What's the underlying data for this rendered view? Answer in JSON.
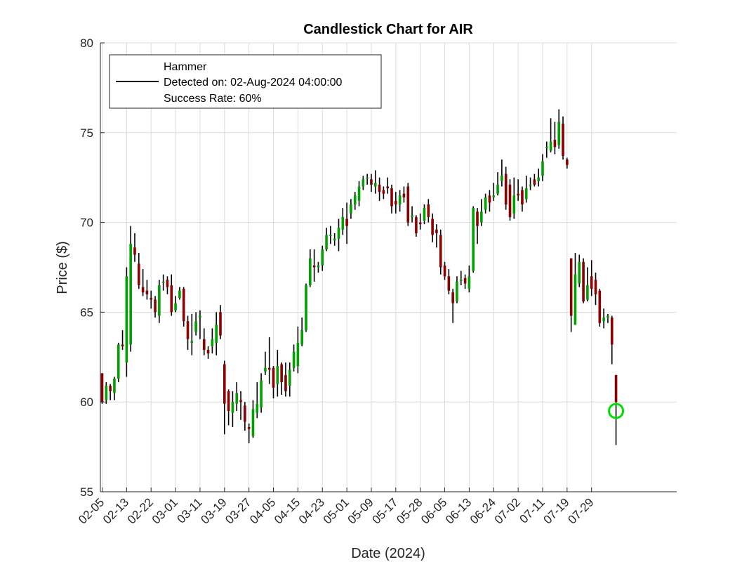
{
  "chart_data": {
    "type": "candlestick",
    "title": "Candlestick Chart for AIR",
    "xlabel": "Date (2024)",
    "ylabel": "Price ($)",
    "ylim": [
      55,
      80
    ],
    "yticks": [
      55,
      60,
      65,
      70,
      75,
      80
    ],
    "xtick_labels": [
      "02-05",
      "02-13",
      "02-22",
      "03-01",
      "03-11",
      "03-19",
      "03-27",
      "04-05",
      "04-15",
      "04-23",
      "05-01",
      "05-09",
      "05-17",
      "05-28",
      "06-05",
      "06-13",
      "06-24",
      "07-02",
      "07-11",
      "07-19",
      "07-29"
    ],
    "grid": true,
    "legend": {
      "location": "top-left",
      "lines": [
        "Hammer",
        "Detected on: 02-Aug-2024 04:00:00",
        "Success Rate: 60%"
      ]
    },
    "colors": {
      "up": "#00a000",
      "down": "#8b0000",
      "wick": "#000000",
      "marker": "#00e000"
    },
    "marker": {
      "index": 126,
      "price": 59.5
    },
    "candles": [
      [
        61.6,
        60.0,
        61.6,
        59.9
      ],
      [
        60.1,
        60.9,
        61.1,
        59.9
      ],
      [
        60.9,
        60.6,
        61.0,
        60.1
      ],
      [
        60.5,
        61.3,
        61.4,
        60.1
      ],
      [
        61.3,
        63.2,
        63.3,
        61.1
      ],
      [
        63.2,
        63.1,
        64.0,
        62.9
      ],
      [
        62.2,
        67.0,
        67.5,
        61.4
      ],
      [
        63.2,
        68.8,
        69.8,
        62.8
      ],
      [
        68.6,
        68.2,
        69.4,
        67.8
      ],
      [
        67.7,
        66.5,
        68.3,
        66.3
      ],
      [
        66.4,
        66.1,
        67.4,
        65.9
      ],
      [
        66.2,
        66.0,
        66.8,
        65.7
      ],
      [
        65.8,
        65.7,
        66.2,
        65.2
      ],
      [
        65.7,
        65.0,
        65.9,
        64.7
      ],
      [
        64.8,
        66.5,
        66.8,
        64.4
      ],
      [
        66.7,
        66.7,
        67.1,
        66.2
      ],
      [
        66.8,
        66.4,
        67.0,
        66.0
      ],
      [
        66.5,
        65.0,
        67.1,
        64.8
      ],
      [
        65.1,
        65.5,
        65.9,
        65.0
      ],
      [
        65.8,
        66.2,
        66.4,
        65.7
      ],
      [
        66.3,
        64.5,
        66.4,
        64.2
      ],
      [
        64.5,
        63.5,
        64.8,
        62.9
      ],
      [
        63.3,
        63.4,
        64.9,
        62.6
      ],
      [
        63.9,
        64.5,
        65.0,
        63.7
      ],
      [
        64.7,
        64.8,
        65.1,
        63.5
      ],
      [
        63.5,
        62.9,
        64.1,
        62.6
      ],
      [
        62.9,
        62.7,
        63.1,
        62.4
      ],
      [
        63.1,
        63.5,
        64.1,
        62.7
      ],
      [
        63.3,
        64.3,
        65.0,
        62.6
      ],
      [
        65.0,
        63.7,
        65.4,
        63.5
      ],
      [
        62.1,
        59.9,
        62.3,
        58.2
      ],
      [
        60.6,
        59.5,
        60.7,
        58.7
      ],
      [
        59.4,
        60.0,
        60.6,
        58.6
      ],
      [
        59.9,
        60.5,
        61.1,
        59.5
      ],
      [
        60.1,
        60.0,
        60.6,
        59.0
      ],
      [
        59.8,
        58.9,
        60.0,
        58.4
      ],
      [
        58.6,
        58.5,
        58.8,
        57.7
      ],
      [
        58.1,
        59.6,
        60.1,
        58.0
      ],
      [
        59.4,
        59.9,
        61.1,
        59.1
      ],
      [
        59.7,
        61.2,
        61.6,
        59.4
      ],
      [
        61.7,
        61.9,
        62.8,
        61.5
      ],
      [
        61.9,
        61.8,
        63.6,
        61.0
      ],
      [
        61.9,
        60.8,
        62.0,
        60.2
      ],
      [
        61.0,
        62.0,
        62.9,
        60.3
      ],
      [
        62.1,
        61.1,
        62.2,
        60.4
      ],
      [
        61.5,
        60.6,
        62.2,
        60.3
      ],
      [
        60.9,
        61.8,
        62.2,
        60.3
      ],
      [
        61.9,
        62.8,
        63.2,
        61.7
      ],
      [
        62.0,
        63.3,
        64.2,
        61.6
      ],
      [
        63.2,
        64.0,
        64.7,
        63.1
      ],
      [
        64.0,
        66.5,
        66.6,
        63.9
      ],
      [
        66.5,
        68.0,
        68.5,
        66.4
      ],
      [
        67.6,
        67.5,
        68.5,
        66.7
      ],
      [
        67.5,
        67.6,
        67.8,
        67.2
      ],
      [
        67.6,
        68.5,
        68.7,
        67.3
      ],
      [
        68.5,
        69.3,
        69.7,
        68.4
      ],
      [
        69.3,
        69.3,
        69.8,
        68.8
      ],
      [
        69.0,
        69.1,
        69.4,
        68.7
      ],
      [
        69.1,
        69.7,
        70.2,
        68.4
      ],
      [
        69.6,
        70.3,
        70.8,
        69.3
      ],
      [
        70.2,
        69.8,
        71.1,
        68.8
      ],
      [
        70.5,
        71.0,
        71.3,
        70.2
      ],
      [
        71.0,
        71.5,
        71.7,
        70.7
      ],
      [
        71.2,
        72.0,
        72.3,
        70.9
      ],
      [
        72.0,
        72.4,
        72.6,
        71.8
      ],
      [
        72.5,
        72.5,
        72.7,
        72.1
      ],
      [
        72.4,
        72.1,
        72.7,
        71.7
      ],
      [
        72.0,
        72.2,
        72.9,
        71.6
      ],
      [
        72.1,
        71.7,
        72.5,
        71.2
      ],
      [
        71.8,
        71.6,
        72.0,
        71.3
      ],
      [
        72.0,
        71.9,
        72.5,
        71.6
      ],
      [
        71.9,
        70.9,
        72.1,
        70.5
      ],
      [
        71.2,
        71.0,
        71.7,
        70.5
      ],
      [
        71.0,
        71.5,
        71.8,
        70.6
      ],
      [
        71.6,
        71.4,
        72.0,
        71.1
      ],
      [
        72.0,
        70.0,
        72.2,
        69.8
      ],
      [
        70.3,
        70.4,
        70.9,
        70.0
      ],
      [
        70.3,
        69.4,
        70.4,
        69.2
      ],
      [
        70.0,
        69.9,
        70.5,
        69.6
      ],
      [
        70.1,
        70.8,
        71.0,
        69.9
      ],
      [
        71.0,
        70.3,
        71.3,
        70.0
      ],
      [
        70.2,
        69.3,
        70.5,
        68.9
      ],
      [
        69.6,
        69.4,
        69.9,
        68.6
      ],
      [
        69.3,
        67.5,
        69.6,
        67.1
      ],
      [
        67.6,
        67.0,
        67.8,
        66.8
      ],
      [
        67.0,
        66.2,
        67.4,
        66.0
      ],
      [
        66.1,
        65.5,
        66.3,
        64.4
      ],
      [
        65.6,
        66.7,
        67.0,
        65.5
      ],
      [
        66.8,
        66.8,
        67.3,
        66.5
      ],
      [
        66.9,
        66.6,
        67.1,
        66.3
      ],
      [
        66.3,
        67.0,
        67.6,
        66.1
      ],
      [
        67.3,
        70.8,
        70.9,
        67.2
      ],
      [
        70.6,
        69.8,
        70.8,
        68.8
      ],
      [
        70.0,
        70.6,
        71.3,
        69.8
      ],
      [
        70.7,
        71.4,
        71.6,
        70.5
      ],
      [
        71.5,
        71.1,
        71.8,
        70.6
      ],
      [
        71.4,
        71.5,
        72.2,
        71.2
      ],
      [
        71.6,
        72.1,
        72.8,
        71.5
      ],
      [
        72.3,
        72.6,
        73.5,
        72.0
      ],
      [
        72.7,
        71.0,
        73.1,
        70.7
      ],
      [
        72.1,
        70.3,
        72.4,
        70.1
      ],
      [
        70.5,
        71.5,
        72.5,
        70.2
      ],
      [
        71.6,
        71.5,
        72.4,
        71.2
      ],
      [
        71.8,
        71.0,
        72.0,
        70.6
      ],
      [
        71.3,
        71.9,
        72.6,
        71.1
      ],
      [
        72.1,
        72.1,
        72.5,
        71.8
      ],
      [
        72.4,
        72.1,
        72.7,
        72.0
      ],
      [
        72.3,
        72.5,
        73.0,
        72.0
      ],
      [
        72.6,
        73.4,
        73.8,
        72.3
      ],
      [
        74.2,
        74.2,
        74.5,
        73.6
      ],
      [
        74.0,
        74.5,
        75.8,
        73.9
      ],
      [
        74.6,
        74.2,
        75.6,
        73.8
      ],
      [
        74.3,
        75.6,
        76.3,
        74.1
      ],
      [
        75.5,
        73.7,
        75.9,
        73.5
      ],
      [
        73.5,
        73.2,
        73.6,
        73.0
      ],
      [
        68.0,
        64.8,
        68.0,
        63.9
      ],
      [
        64.3,
        67.1,
        68.3,
        64.3
      ],
      [
        66.6,
        67.8,
        68.2,
        66.4
      ],
      [
        67.8,
        65.6,
        68.0,
        65.5
      ],
      [
        65.7,
        66.5,
        67.5,
        65.6
      ],
      [
        67.0,
        66.3,
        67.9,
        65.9
      ],
      [
        66.8,
        66.0,
        67.2,
        65.4
      ],
      [
        66.2,
        64.4,
        66.3,
        64.2
      ],
      [
        64.5,
        64.7,
        65.2,
        64.1
      ],
      [
        64.7,
        64.8,
        64.9,
        64.4
      ],
      [
        64.7,
        63.2,
        64.8,
        62.1
      ],
      [
        61.5,
        60.0,
        61.5,
        57.6
      ]
    ]
  }
}
